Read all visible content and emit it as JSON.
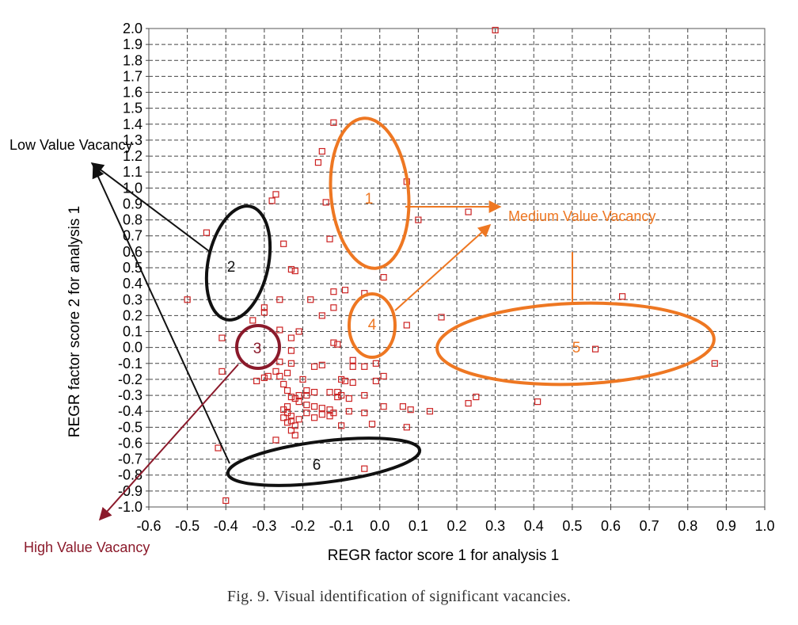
{
  "chart_data": {
    "type": "scatter",
    "title": "",
    "xlabel": "REGR factor score 1 for analysis 1",
    "ylabel": "REGR factor score 2 for analysis 1",
    "xlim": [
      -0.6,
      1.0
    ],
    "ylim": [
      -1.0,
      2.0
    ],
    "x_ticks": [
      "-0.6",
      "-0.5",
      "-0.4",
      "-0.3",
      "-0.2",
      "-0.1",
      "0.0",
      "0.1",
      "0.2",
      "0.3",
      "0.4",
      "0.5",
      "0.6",
      "0.7",
      "0.8",
      "0.9",
      "1.0"
    ],
    "y_ticks": [
      "-1.0",
      "-0.9",
      "-0.8",
      "-0.7",
      "-0.6",
      "-0.5",
      "-0.4",
      "-0.3",
      "-0.2",
      "-0.1",
      "0.0",
      "0.1",
      "0.2",
      "0.3",
      "0.4",
      "0.5",
      "0.6",
      "0.7",
      "0.8",
      "0.9",
      "1.0",
      "1.1",
      "1.2",
      "1.3",
      "1.4",
      "1.5",
      "1.6",
      "1.7",
      "1.8",
      "1.9",
      "2.0"
    ],
    "grid": true,
    "marker_color": "#cc2222",
    "points": [
      [
        0.3,
        1.99
      ],
      [
        -0.12,
        1.41
      ],
      [
        -0.15,
        1.23
      ],
      [
        -0.16,
        1.16
      ],
      [
        0.07,
        1.04
      ],
      [
        -0.27,
        0.96
      ],
      [
        -0.28,
        0.92
      ],
      [
        -0.14,
        0.91
      ],
      [
        0.23,
        0.85
      ],
      [
        0.1,
        0.8
      ],
      [
        -0.45,
        0.72
      ],
      [
        -0.13,
        0.68
      ],
      [
        -0.25,
        0.65
      ],
      [
        -0.23,
        0.49
      ],
      [
        -0.22,
        0.48
      ],
      [
        0.01,
        0.44
      ],
      [
        -0.09,
        0.36
      ],
      [
        -0.12,
        0.35
      ],
      [
        -0.04,
        0.34
      ],
      [
        -0.5,
        0.3
      ],
      [
        -0.26,
        0.3
      ],
      [
        -0.18,
        0.3
      ],
      [
        -0.12,
        0.25
      ],
      [
        -0.3,
        0.25
      ],
      [
        -0.3,
        0.22
      ],
      [
        -0.15,
        0.2
      ],
      [
        0.16,
        0.19
      ],
      [
        -0.33,
        0.17
      ],
      [
        0.07,
        0.14
      ],
      [
        -0.26,
        0.11
      ],
      [
        -0.21,
        0.1
      ],
      [
        -0.23,
        0.06
      ],
      [
        -0.41,
        0.06
      ],
      [
        -0.11,
        0.02
      ],
      [
        -0.12,
        0.03
      ],
      [
        -0.23,
        -0.02
      ],
      [
        -0.07,
        -0.08
      ],
      [
        -0.26,
        -0.09
      ],
      [
        -0.23,
        -0.1
      ],
      [
        -0.17,
        -0.12
      ],
      [
        -0.15,
        -0.11
      ],
      [
        -0.07,
        -0.12
      ],
      [
        -0.04,
        -0.12
      ],
      [
        -0.01,
        -0.1
      ],
      [
        -0.41,
        -0.15
      ],
      [
        -0.27,
        -0.15
      ],
      [
        -0.24,
        -0.16
      ],
      [
        -0.26,
        -0.18
      ],
      [
        -0.29,
        -0.18
      ],
      [
        -0.3,
        -0.19
      ],
      [
        -0.32,
        -0.21
      ],
      [
        -0.1,
        -0.2
      ],
      [
        -0.09,
        -0.21
      ],
      [
        0.01,
        -0.18
      ],
      [
        -0.01,
        -0.21
      ],
      [
        -0.07,
        -0.22
      ],
      [
        -0.2,
        -0.2
      ],
      [
        -0.25,
        -0.23
      ],
      [
        -0.19,
        -0.27
      ],
      [
        -0.17,
        -0.28
      ],
      [
        -0.24,
        -0.27
      ],
      [
        -0.21,
        -0.3
      ],
      [
        -0.23,
        -0.31
      ],
      [
        -0.22,
        -0.32
      ],
      [
        -0.19,
        -0.3
      ],
      [
        -0.13,
        -0.28
      ],
      [
        -0.11,
        -0.28
      ],
      [
        -0.04,
        -0.3
      ],
      [
        -0.08,
        -0.32
      ],
      [
        -0.11,
        -0.31
      ],
      [
        -0.1,
        -0.3
      ],
      [
        -0.21,
        -0.34
      ],
      [
        -0.19,
        -0.36
      ],
      [
        -0.17,
        -0.37
      ],
      [
        -0.15,
        -0.38
      ],
      [
        -0.13,
        -0.39
      ],
      [
        -0.12,
        -0.41
      ],
      [
        -0.08,
        -0.4
      ],
      [
        -0.04,
        -0.41
      ],
      [
        0.01,
        -0.37
      ],
      [
        -0.24,
        -0.37
      ],
      [
        -0.25,
        -0.39
      ],
      [
        -0.24,
        -0.41
      ],
      [
        -0.23,
        -0.43
      ],
      [
        -0.25,
        -0.44
      ],
      [
        -0.23,
        -0.46
      ],
      [
        -0.24,
        -0.47
      ],
      [
        -0.21,
        -0.45
      ],
      [
        -0.19,
        -0.41
      ],
      [
        -0.15,
        -0.42
      ],
      [
        -0.13,
        -0.43
      ],
      [
        -0.17,
        -0.44
      ],
      [
        0.06,
        -0.37
      ],
      [
        0.08,
        -0.39
      ],
      [
        0.13,
        -0.4
      ],
      [
        0.25,
        -0.31
      ],
      [
        0.23,
        -0.35
      ],
      [
        0.41,
        -0.34
      ],
      [
        0.63,
        0.32
      ],
      [
        0.56,
        -0.01
      ],
      [
        0.87,
        -0.1
      ],
      [
        -0.02,
        -0.48
      ],
      [
        -0.1,
        -0.49
      ],
      [
        0.07,
        -0.5
      ],
      [
        -0.22,
        -0.49
      ],
      [
        -0.23,
        -0.52
      ],
      [
        -0.22,
        -0.55
      ],
      [
        -0.27,
        -0.58
      ],
      [
        -0.42,
        -0.63
      ],
      [
        -0.04,
        -0.76
      ],
      [
        -0.4,
        -0.96
      ]
    ],
    "regions": [
      {
        "label": "1",
        "color": "#ee7722"
      },
      {
        "label": "2",
        "color": "#111111"
      },
      {
        "label": "3",
        "color": "#8b1a2b"
      },
      {
        "label": "4",
        "color": "#ee7722"
      },
      {
        "label": "5",
        "color": "#ee7722"
      },
      {
        "label": "6",
        "color": "#111111"
      }
    ],
    "annotations": {
      "low": {
        "text": "Low Value Vacancy",
        "color": "#000000"
      },
      "medium": {
        "text": "Medium Value Vacancy",
        "color": "#ee7722"
      },
      "high": {
        "text": "High Value Vacancy",
        "color": "#8b1a2b"
      }
    }
  },
  "caption": "Fig. 9.  Visual identification of significant vacancies."
}
